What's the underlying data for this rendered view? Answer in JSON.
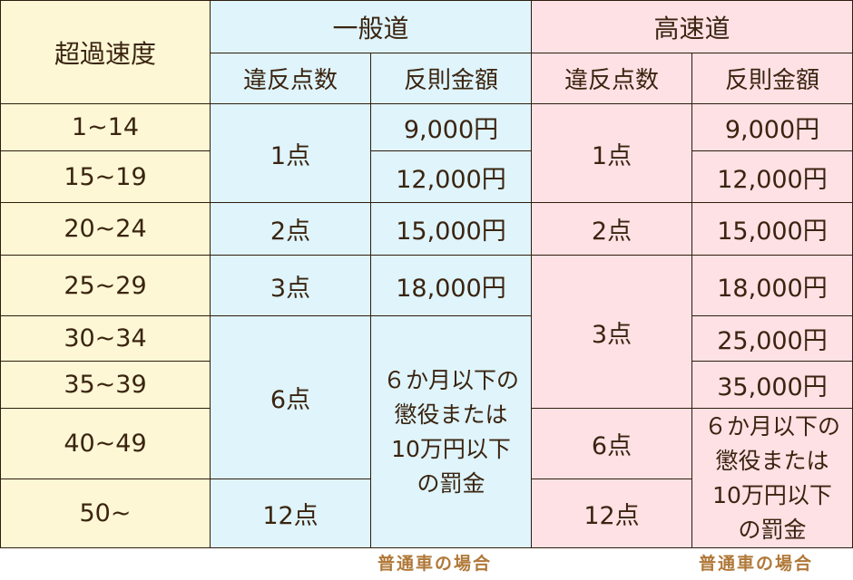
{
  "chart_data": {
    "type": "table",
    "header": {
      "speed_col": "超過速度",
      "general_group": "一般道",
      "highway_group": "高速道",
      "points_label": "違反点数",
      "fine_label": "反則金額"
    },
    "speeds": [
      "1~14",
      "15~19",
      "20~24",
      "25~29",
      "30~34",
      "35~39",
      "40~49",
      "50~"
    ],
    "general": {
      "points": [
        "1点",
        "2点",
        "3点",
        "6点",
        "12点"
      ],
      "fines": [
        "9,000円",
        "12,000円",
        "15,000円",
        "18,000円"
      ],
      "penalty_note": [
        "６か月以下の",
        "懲役または",
        "10万円以下",
        "の罰金"
      ]
    },
    "highway": {
      "points": [
        "1点",
        "2点",
        "3点",
        "6点",
        "12点"
      ],
      "fines": [
        "9,000円",
        "12,000円",
        "15,000円",
        "18,000円",
        "25,000円",
        "35,000円"
      ],
      "penalty_note": [
        "６か月以下の",
        "懲役または",
        "10万円以下",
        "の罰金"
      ]
    },
    "footnotes": [
      "普通車の場合",
      "普通車の場合"
    ]
  },
  "colors": {
    "speed_bg": "#fdf7d5",
    "general_bg": "#dff4fb",
    "highway_bg": "#fde1e4",
    "border": "#2e1d0d",
    "text": "#3a2410",
    "footnote": "#b07838"
  }
}
